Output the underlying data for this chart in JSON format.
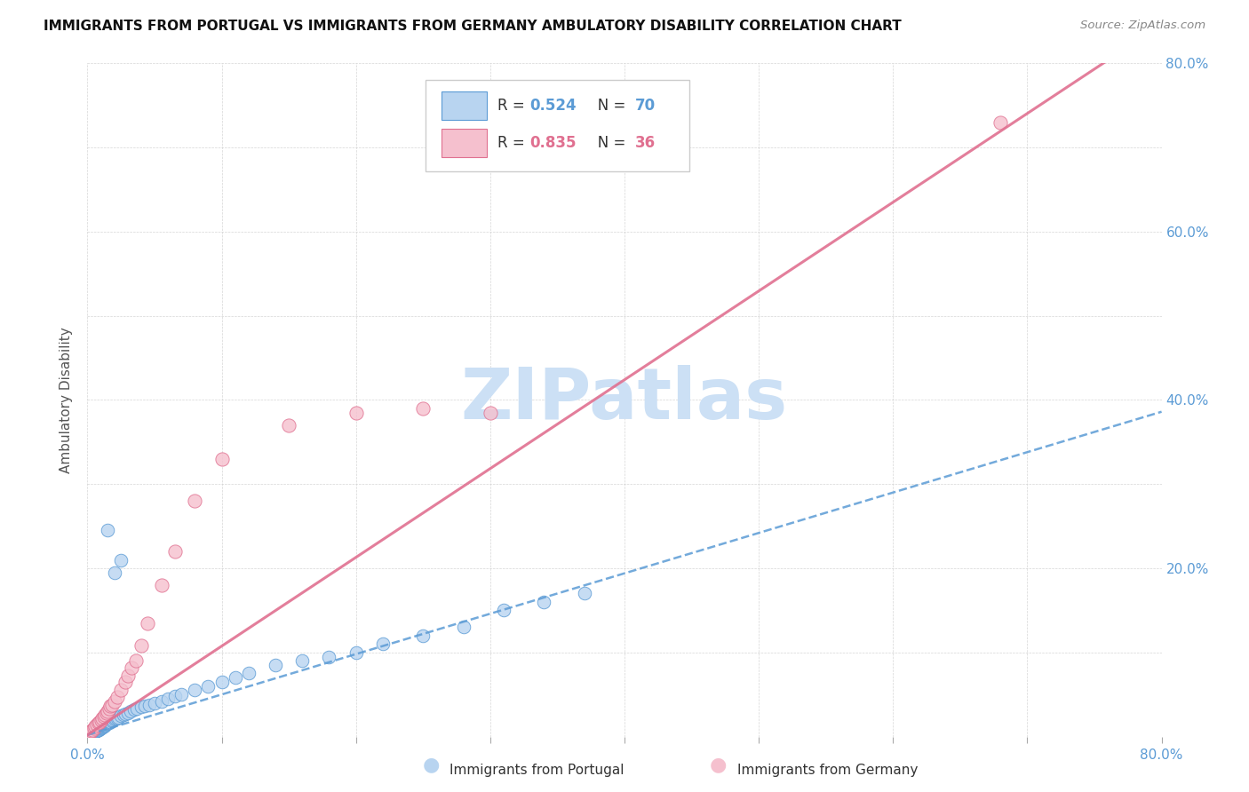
{
  "title": "IMMIGRANTS FROM PORTUGAL VS IMMIGRANTS FROM GERMANY AMBULATORY DISABILITY CORRELATION CHART",
  "source": "Source: ZipAtlas.com",
  "ylabel": "Ambulatory Disability",
  "xlim": [
    0,
    0.8
  ],
  "ylim": [
    0,
    0.8
  ],
  "portugal_color": "#b8d4f0",
  "portugal_edge_color": "#5b9bd5",
  "germany_color": "#f5c0ce",
  "germany_edge_color": "#e07090",
  "portugal_R": 0.524,
  "portugal_N": 70,
  "germany_R": 0.835,
  "germany_N": 36,
  "portugal_line_color": "#5b9bd5",
  "germany_line_color": "#e07090",
  "watermark_color": "#cce0f5",
  "legend_label_portugal": "Immigrants from Portugal",
  "legend_label_germany": "Immigrants from Germany",
  "portugal_scatter_x": [
    0.001,
    0.002,
    0.002,
    0.003,
    0.003,
    0.004,
    0.004,
    0.005,
    0.005,
    0.006,
    0.006,
    0.007,
    0.007,
    0.008,
    0.008,
    0.009,
    0.009,
    0.01,
    0.01,
    0.011,
    0.011,
    0.012,
    0.012,
    0.013,
    0.013,
    0.014,
    0.014,
    0.015,
    0.016,
    0.016,
    0.017,
    0.018,
    0.019,
    0.02,
    0.021,
    0.022,
    0.023,
    0.025,
    0.027,
    0.028,
    0.03,
    0.032,
    0.035,
    0.037,
    0.04,
    0.043,
    0.046,
    0.05,
    0.055,
    0.06,
    0.065,
    0.07,
    0.08,
    0.09,
    0.1,
    0.11,
    0.12,
    0.14,
    0.16,
    0.18,
    0.2,
    0.22,
    0.25,
    0.28,
    0.31,
    0.34,
    0.37,
    0.02,
    0.025,
    0.015
  ],
  "portugal_scatter_y": [
    0.001,
    0.002,
    0.003,
    0.003,
    0.004,
    0.004,
    0.005,
    0.005,
    0.006,
    0.006,
    0.007,
    0.007,
    0.008,
    0.008,
    0.008,
    0.009,
    0.01,
    0.01,
    0.011,
    0.011,
    0.012,
    0.012,
    0.013,
    0.013,
    0.014,
    0.015,
    0.016,
    0.016,
    0.016,
    0.017,
    0.018,
    0.019,
    0.02,
    0.021,
    0.022,
    0.022,
    0.023,
    0.025,
    0.026,
    0.027,
    0.028,
    0.03,
    0.032,
    0.033,
    0.035,
    0.036,
    0.038,
    0.04,
    0.042,
    0.045,
    0.048,
    0.05,
    0.055,
    0.06,
    0.065,
    0.07,
    0.075,
    0.085,
    0.09,
    0.095,
    0.1,
    0.11,
    0.12,
    0.13,
    0.15,
    0.16,
    0.17,
    0.195,
    0.21,
    0.245
  ],
  "germany_scatter_x": [
    0.001,
    0.002,
    0.003,
    0.004,
    0.005,
    0.006,
    0.007,
    0.008,
    0.009,
    0.01,
    0.011,
    0.012,
    0.013,
    0.014,
    0.015,
    0.016,
    0.017,
    0.018,
    0.02,
    0.022,
    0.025,
    0.028,
    0.03,
    0.033,
    0.036,
    0.04,
    0.045,
    0.055,
    0.065,
    0.08,
    0.1,
    0.15,
    0.2,
    0.25,
    0.3,
    0.68
  ],
  "germany_scatter_y": [
    0.003,
    0.005,
    0.007,
    0.008,
    0.01,
    0.012,
    0.014,
    0.016,
    0.018,
    0.02,
    0.022,
    0.024,
    0.026,
    0.028,
    0.03,
    0.033,
    0.036,
    0.038,
    0.042,
    0.047,
    0.055,
    0.065,
    0.072,
    0.082,
    0.09,
    0.108,
    0.135,
    0.18,
    0.22,
    0.28,
    0.33,
    0.37,
    0.385,
    0.39,
    0.385,
    0.73
  ],
  "portugal_line_slope": 0.48,
  "portugal_line_intercept": 0.002,
  "germany_line_slope": 1.055,
  "germany_line_intercept": 0.002
}
